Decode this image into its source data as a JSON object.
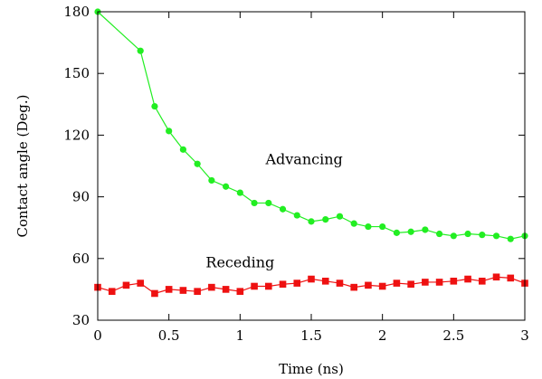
{
  "chart_data": {
    "type": "line",
    "title": "",
    "xlabel": "Time (ns)",
    "ylabel": "Contact angle  (Deg.)",
    "xlim": [
      0,
      3
    ],
    "ylim": [
      30,
      180
    ],
    "xticks": [
      0,
      0.5,
      1,
      1.5,
      2,
      2.5,
      3
    ],
    "xtick_labels": [
      "0",
      "0.5",
      "1",
      "1.5",
      "2",
      "2.5",
      "3"
    ],
    "yticks": [
      30,
      60,
      90,
      120,
      150,
      180
    ],
    "ytick_labels": [
      "30",
      "60",
      "90",
      "120",
      "150",
      "180"
    ],
    "grid": false,
    "legend": "none",
    "series": [
      {
        "name": "Advancing",
        "color": "#22ee22",
        "marker": "circle",
        "x": [
          0,
          0.3,
          0.4,
          0.5,
          0.6,
          0.7,
          0.8,
          0.9,
          1.0,
          1.1,
          1.2,
          1.3,
          1.4,
          1.5,
          1.6,
          1.7,
          1.8,
          1.9,
          2.0,
          2.1,
          2.2,
          2.3,
          2.4,
          2.5,
          2.6,
          2.7,
          2.8,
          2.9,
          3.0
        ],
        "values": [
          180,
          161,
          134,
          122,
          113,
          106,
          98,
          95,
          92,
          87,
          87,
          84,
          81,
          78,
          79,
          80.5,
          77,
          75.5,
          75.5,
          72.5,
          73,
          74,
          72,
          71,
          72,
          71.5,
          71,
          69.5,
          71
        ]
      },
      {
        "name": "Receding",
        "color": "#ee1111",
        "marker": "square",
        "x": [
          0,
          0.1,
          0.2,
          0.3,
          0.4,
          0.5,
          0.6,
          0.7,
          0.8,
          0.9,
          1.0,
          1.1,
          1.2,
          1.3,
          1.4,
          1.5,
          1.6,
          1.7,
          1.8,
          1.9,
          2.0,
          2.1,
          2.2,
          2.3,
          2.4,
          2.5,
          2.6,
          2.7,
          2.8,
          2.9,
          3.0
        ],
        "values": [
          46,
          44,
          47,
          48,
          43,
          45,
          44.5,
          44,
          46,
          45,
          44,
          46.5,
          46.5,
          47.5,
          48,
          50,
          49,
          48,
          46,
          47,
          46.5,
          48,
          47.5,
          48.5,
          48.5,
          49,
          50,
          49,
          51,
          50.5,
          48
        ]
      }
    ],
    "annotations": [
      {
        "text": "Advancing",
        "x": 1.45,
        "y": 108
      },
      {
        "text": "Receding",
        "x": 1.0,
        "y": 58
      }
    ]
  }
}
